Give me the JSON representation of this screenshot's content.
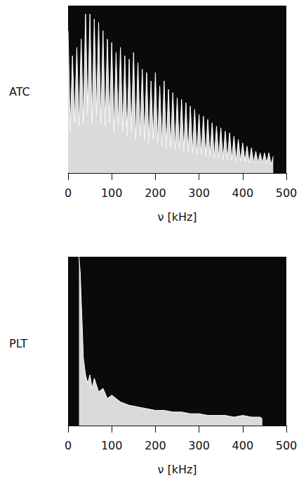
{
  "chart_data": [
    {
      "type": "line",
      "title": "ATC",
      "xlabel": "ν [kHz]",
      "color": "#ffffff",
      "xlim": [
        0,
        500
      ],
      "xticks": [
        0,
        100,
        200,
        300,
        400,
        500
      ],
      "ylim": [
        0,
        100
      ],
      "tick_labels": "x",
      "x": [
        0,
        5,
        10,
        15,
        20,
        25,
        30,
        35,
        40,
        45,
        50,
        55,
        60,
        65,
        70,
        75,
        80,
        85,
        90,
        95,
        100,
        105,
        110,
        115,
        120,
        125,
        130,
        135,
        140,
        145,
        150,
        155,
        160,
        165,
        170,
        175,
        180,
        185,
        190,
        195,
        200,
        205,
        210,
        215,
        220,
        225,
        230,
        235,
        240,
        245,
        250,
        255,
        260,
        265,
        270,
        275,
        280,
        285,
        290,
        295,
        300,
        305,
        310,
        315,
        320,
        325,
        330,
        335,
        340,
        345,
        350,
        355,
        360,
        365,
        370,
        375,
        380,
        385,
        390,
        395,
        400,
        405,
        410,
        415,
        420,
        425,
        430,
        435,
        440,
        445,
        450,
        455,
        460,
        465,
        470
      ],
      "values": [
        85,
        25,
        70,
        30,
        75,
        28,
        80,
        30,
        95,
        35,
        95,
        30,
        92,
        35,
        90,
        30,
        85,
        28,
        80,
        30,
        78,
        25,
        72,
        28,
        75,
        25,
        70,
        22,
        68,
        25,
        72,
        20,
        66,
        22,
        62,
        20,
        60,
        18,
        55,
        20,
        60,
        18,
        52,
        16,
        55,
        15,
        50,
        15,
        48,
        14,
        45,
        14,
        44,
        13,
        42,
        12,
        40,
        12,
        38,
        11,
        35,
        11,
        34,
        10,
        32,
        10,
        30,
        9,
        28,
        9,
        27,
        8,
        25,
        8,
        24,
        8,
        22,
        7,
        20,
        7,
        18,
        7,
        16,
        6,
        15,
        6,
        13,
        6,
        12,
        6,
        12,
        6,
        12,
        5,
        10
      ]
    },
    {
      "type": "line",
      "title": "PLT",
      "xlabel": "ν [kHz]",
      "color": "#ffffff",
      "xlim": [
        0,
        500
      ],
      "xticks": [
        0,
        100,
        200,
        300,
        400,
        500
      ],
      "ylim": [
        0,
        100
      ],
      "tick_labels": "x",
      "x": [
        25,
        28,
        30,
        33,
        35,
        40,
        45,
        50,
        55,
        60,
        70,
        80,
        90,
        100,
        120,
        140,
        160,
        180,
        200,
        220,
        240,
        260,
        280,
        300,
        320,
        340,
        360,
        380,
        400,
        420,
        440,
        445
      ],
      "values": [
        100,
        90,
        75,
        55,
        40,
        30,
        25,
        30,
        22,
        28,
        20,
        22,
        16,
        18,
        14,
        12,
        11,
        10,
        9,
        9,
        8,
        8,
        7,
        7,
        6,
        6,
        6,
        5,
        6,
        5,
        5,
        4
      ]
    }
  ]
}
